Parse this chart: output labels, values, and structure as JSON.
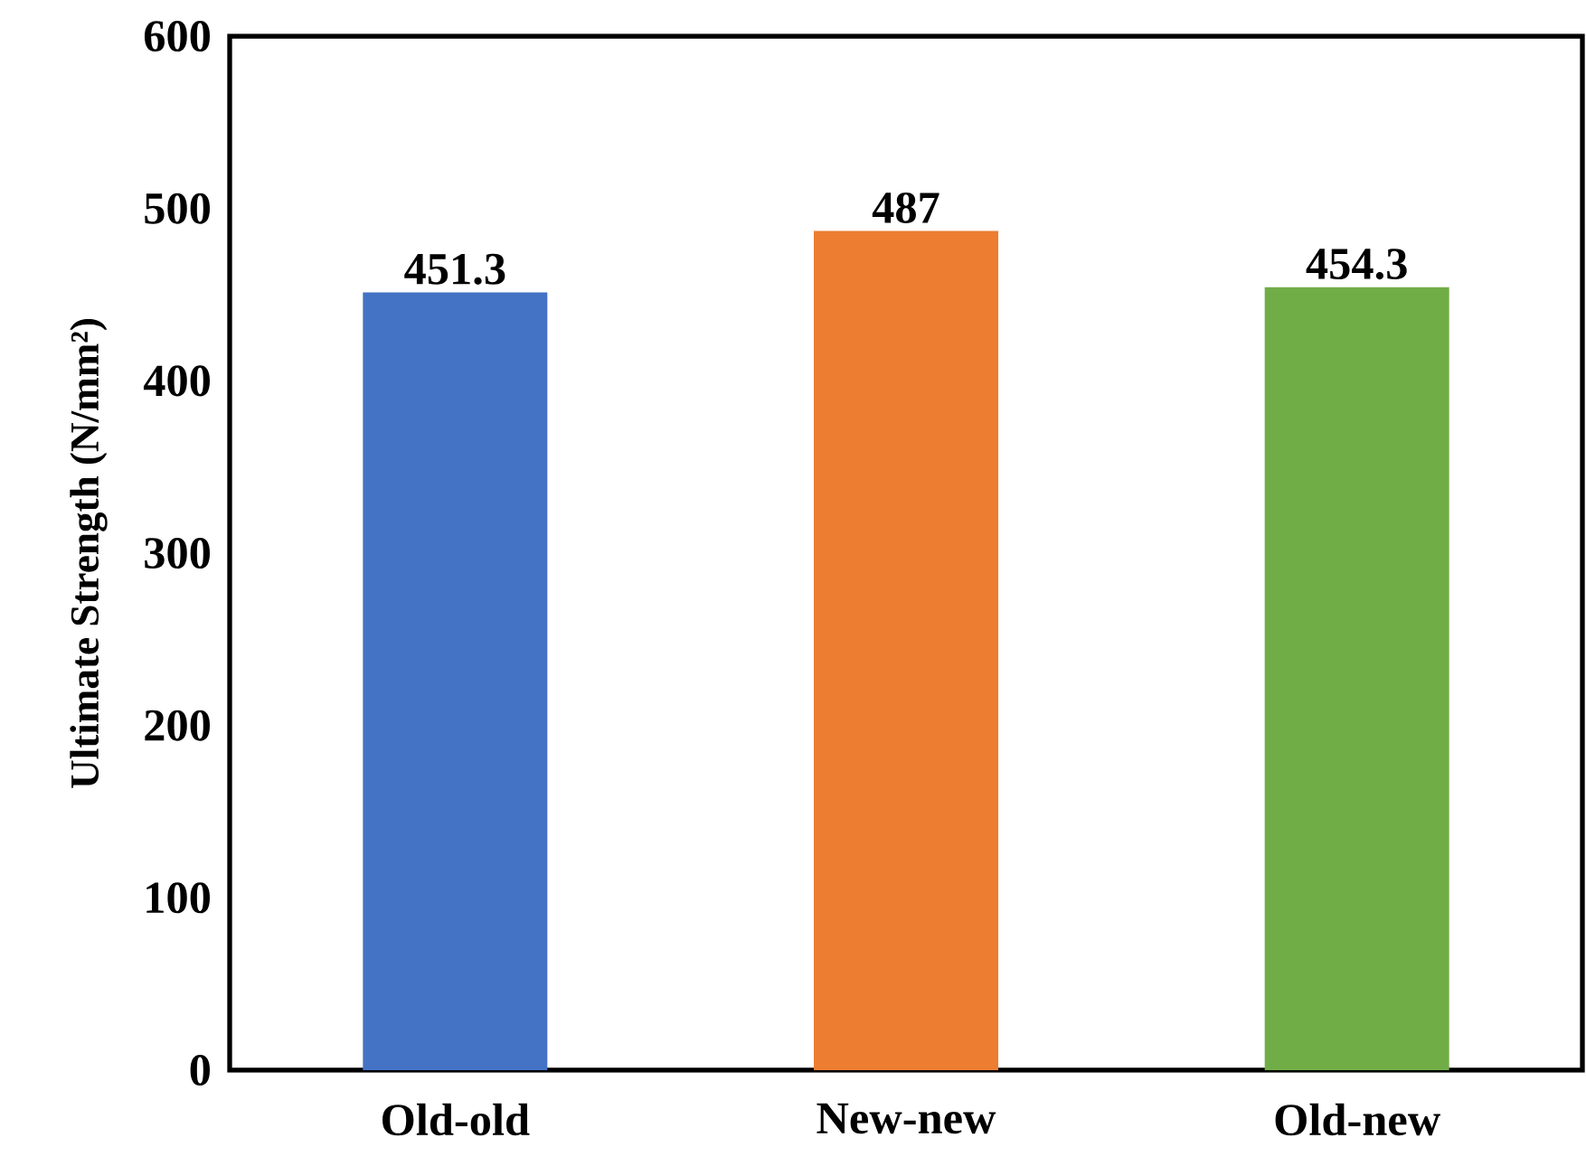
{
  "chart_data": {
    "type": "bar",
    "ylabel": "Ultimate Strength (N/mm²)",
    "categories": [
      "Old-old",
      "New-new",
      "Old-new"
    ],
    "values": [
      451.3,
      487,
      454.3
    ],
    "colors": [
      "#4472c4",
      "#ed7d31",
      "#70ad47"
    ],
    "ylim": [
      0,
      600
    ],
    "yticks": [
      0,
      100,
      200,
      300,
      400,
      500,
      600
    ],
    "data_labels": true
  }
}
